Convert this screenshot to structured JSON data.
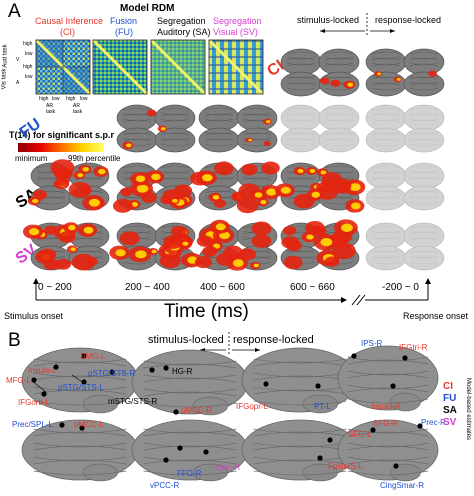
{
  "panel_a": {
    "letter": "A",
    "model_rdm": {
      "title": "Model RDM",
      "models": [
        {
          "name": "Causal Inference",
          "abbr": "(CI)",
          "color": "#e8372b"
        },
        {
          "name": "Fusion",
          "abbr": "(FU)",
          "color": "#1f4fcf"
        },
        {
          "name": "Segregation",
          "name2": "Auditory (SA)",
          "color": "#000000"
        },
        {
          "name": "Segregation",
          "name2": "Visual (SV)",
          "color": "#d63fd0"
        }
      ],
      "row_labels": [
        "high",
        "low",
        "high",
        "low"
      ],
      "row_group_labels": [
        "Aud task",
        "Vis task"
      ],
      "side_labels": [
        "V",
        "A"
      ],
      "col_labels": [
        "high",
        "low",
        "high",
        "low"
      ],
      "col_group_labels": [
        "AR",
        "AR"
      ],
      "col_task_labels": [
        "task",
        "task"
      ]
    },
    "legend": {
      "title": "T(14) for significant s.p.r",
      "min_label": "minimum",
      "max_label": "99th percentile",
      "colors": [
        "#8b0000",
        "#e60000",
        "#ff6a00",
        "#ffd400",
        "#ffff66"
      ]
    },
    "column_headers": {
      "stimulus": "stimulus-locked",
      "response": "response-locked"
    },
    "row_labels": [
      {
        "text": "CI",
        "color": "#e8372b"
      },
      {
        "text": "FU",
        "color": "#1f4fcf"
      },
      {
        "text": "SA",
        "color": "#000000"
      },
      {
        "text": "SV",
        "color": "#d63fd0"
      }
    ],
    "time_windows": [
      "0 ~ 200",
      "200 ~ 400",
      "400 ~ 600",
      "600 ~ 660",
      "-200 ~ 0"
    ],
    "axis_title": "Time (ms)",
    "stimulus_onset": "Stimulus onset",
    "response_onset": "Response onset"
  },
  "panel_b": {
    "letter": "B",
    "header_stimulus": "stimulus-locked",
    "header_response": "response-locked",
    "legend": [
      {
        "text": "CI",
        "color": "#e8372b"
      },
      {
        "text": "FU",
        "color": "#1f4fcf"
      },
      {
        "text": "SA",
        "color": "#000000"
      },
      {
        "text": "SV",
        "color": "#d63fd0"
      }
    ],
    "legend_side": "Model-based estimates",
    "regions": [
      {
        "label": "SMG-L",
        "color": "#e8372b"
      },
      {
        "label": "Insula-L",
        "color": "#e8372b"
      },
      {
        "label": "pSTG/STS-R",
        "color": "#1f4fcf"
      },
      {
        "label": "MFG-L",
        "color": "#e8372b"
      },
      {
        "label": "pSTG/STS-L",
        "color": "#1f4fcf"
      },
      {
        "label": "IFGorb-L",
        "color": "#e8372b"
      },
      {
        "label": "HG-R",
        "color": "#000000"
      },
      {
        "label": "mSTG/STS-R",
        "color": "#000000"
      },
      {
        "label": "Prec/SPL-L",
        "color": "#1f4fcf"
      },
      {
        "label": "pMCC-L",
        "color": "#e8372b"
      },
      {
        "label": "pMCC-R",
        "color": "#e8372b"
      },
      {
        "label": "FFG-R",
        "color": "#1f4fcf"
      },
      {
        "label": "vPCC-R",
        "color": "#1f4fcf"
      },
      {
        "label": "Calc-R",
        "color": "#d63fd0"
      },
      {
        "label": "IPS-R",
        "color": "#1f4fcf"
      },
      {
        "label": "IFGtri-R",
        "color": "#e8372b"
      },
      {
        "label": "IFGopr-L",
        "color": "#e8372b"
      },
      {
        "label": "PT-L",
        "color": "#1f4fcf"
      },
      {
        "label": "Insula-R",
        "color": "#e8372b"
      },
      {
        "label": "Prec-R",
        "color": "#1f4fcf"
      },
      {
        "label": "SFG-L",
        "color": "#e8372b"
      },
      {
        "label": "SFG-R",
        "color": "#e8372b"
      },
      {
        "label": "FpolarS-L",
        "color": "#e8372b"
      },
      {
        "label": "CingSmar-R",
        "color": "#1f4fcf"
      }
    ]
  }
}
